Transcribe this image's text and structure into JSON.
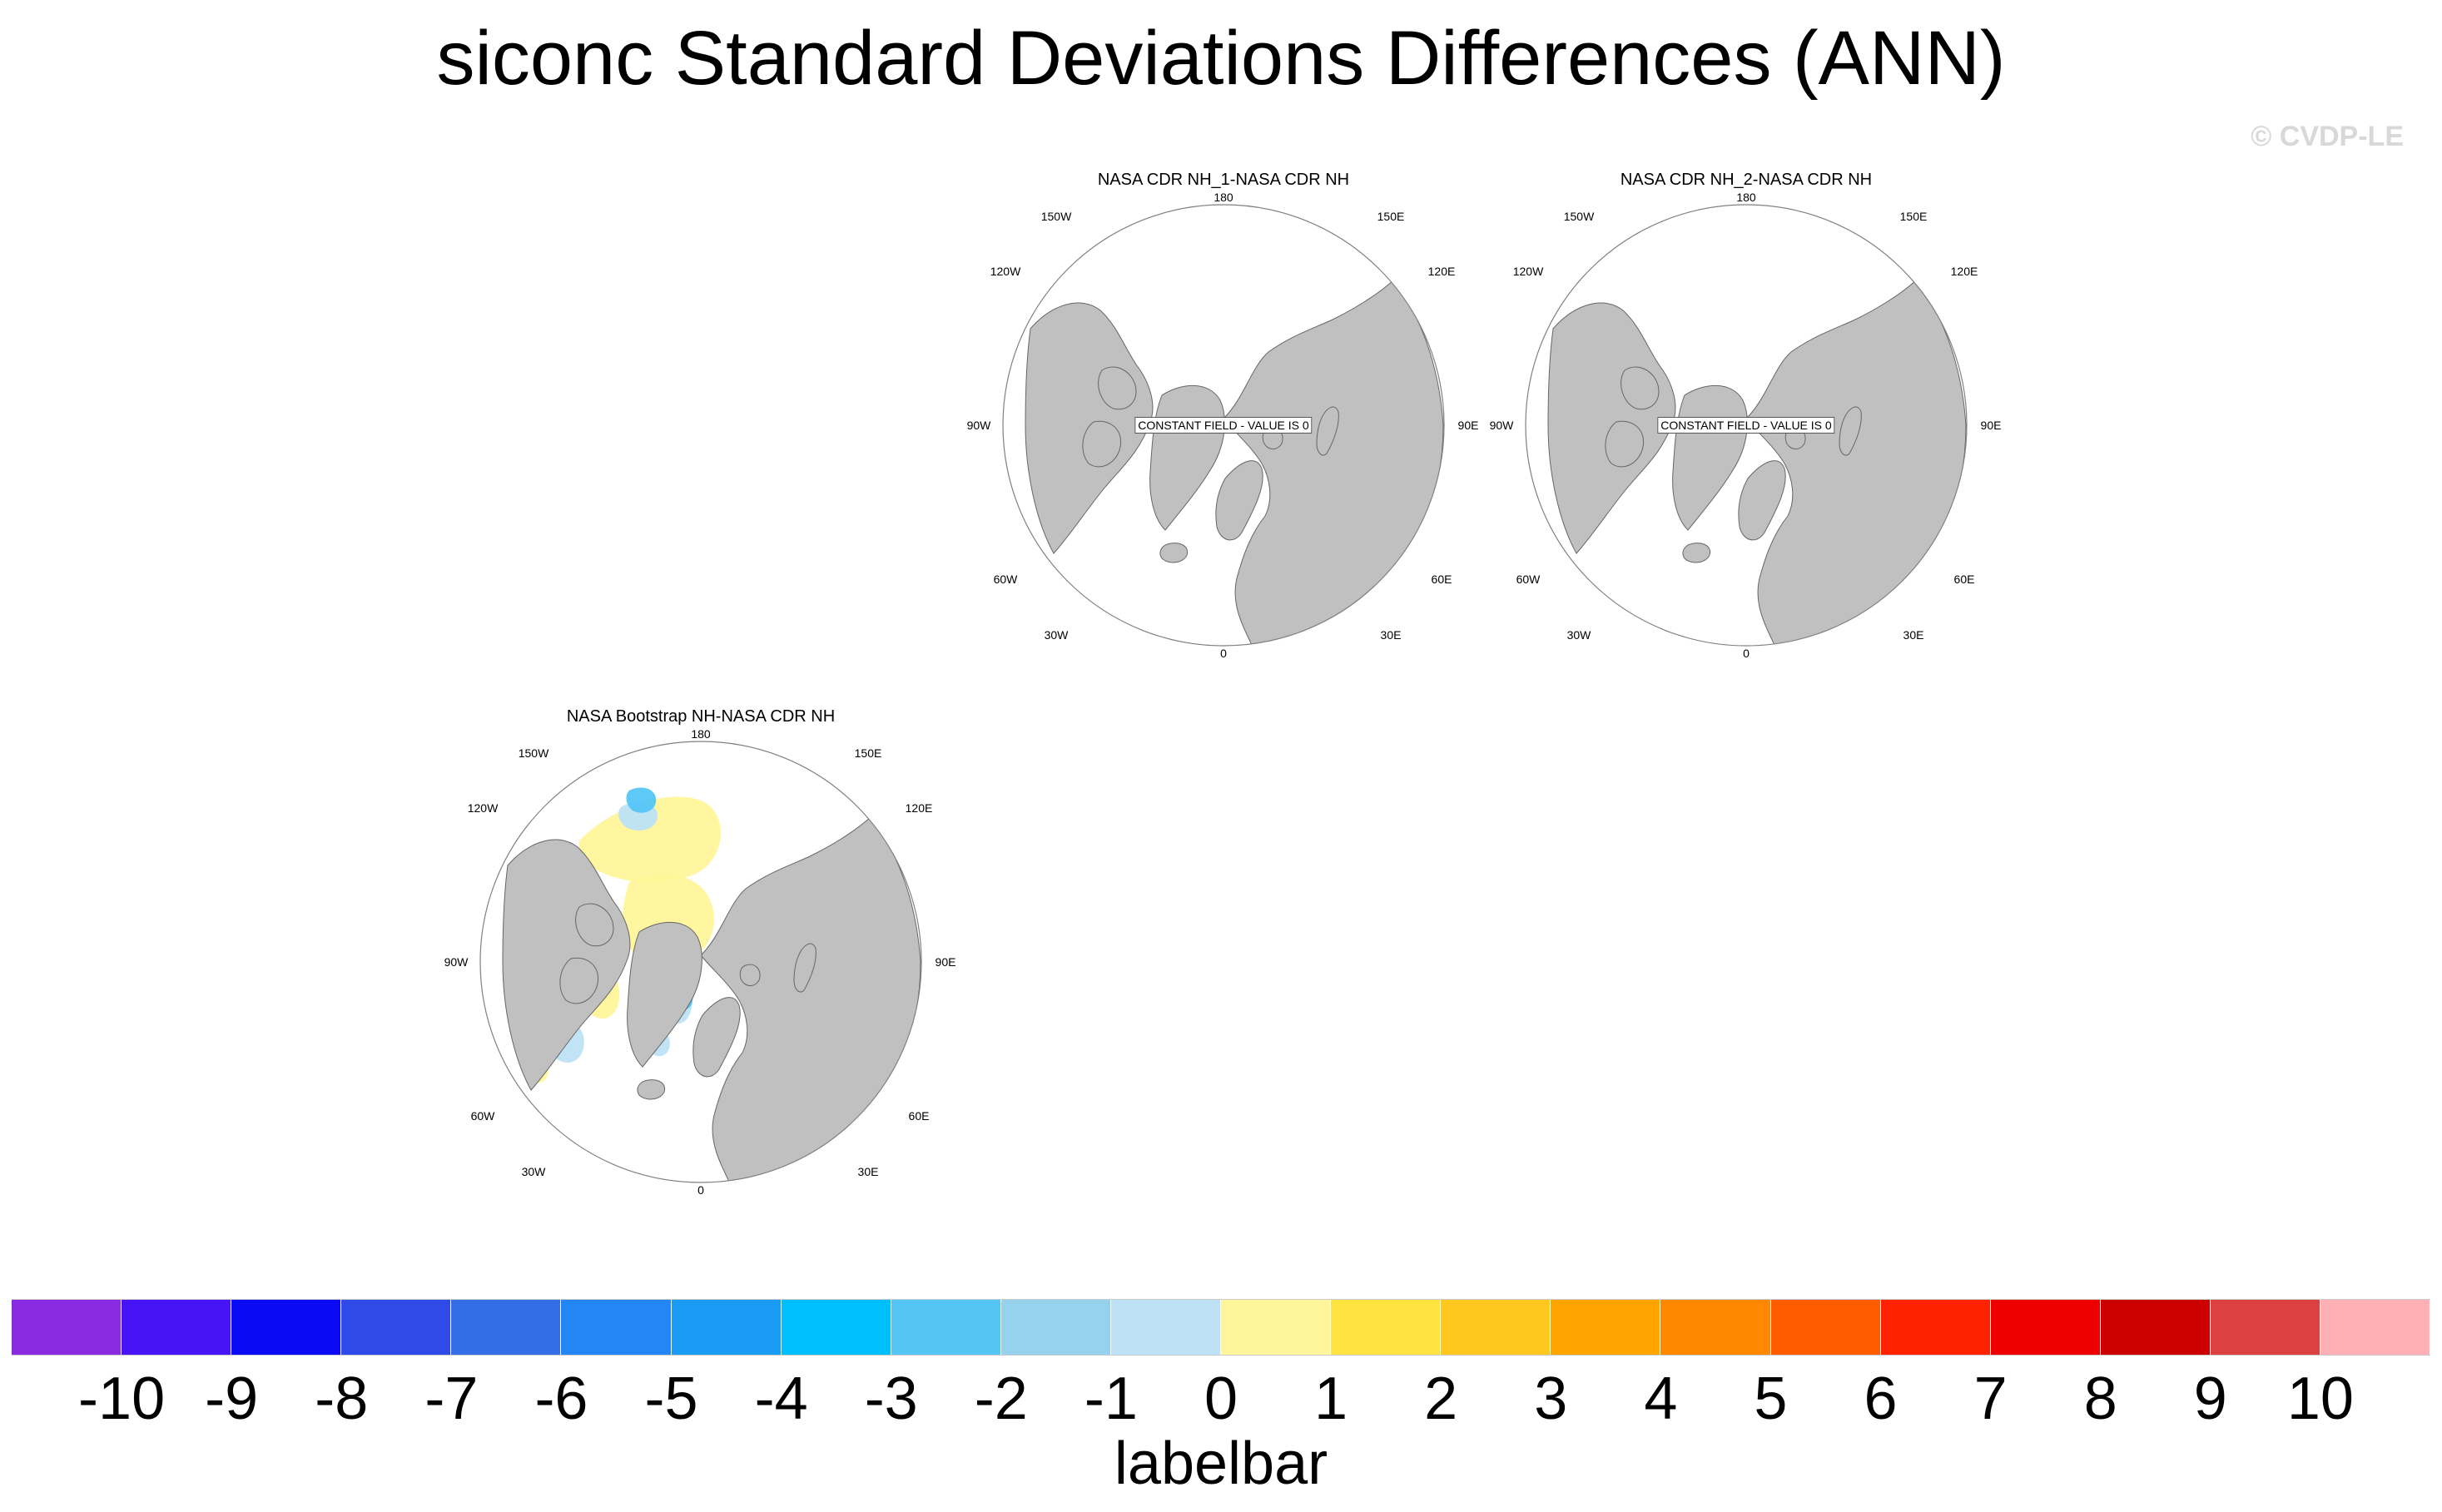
{
  "title": "siconc Standard Deviations Differences (ANN)",
  "credit": "© CVDP-LE",
  "colors": {
    "land": "#c0c0c0",
    "ocean": "#ffffff",
    "coast": "#666666",
    "grid": "#808080"
  },
  "lon_labels": [
    "180",
    "150E",
    "120E",
    "90E",
    "60E",
    "30E",
    "0",
    "30W",
    "60W",
    "90W",
    "120W",
    "150W"
  ],
  "panels": [
    {
      "title": "NASA CDR NH_1-NASA CDR NH",
      "message": "CONSTANT FIELD - VALUE IS 0"
    },
    {
      "title": "NASA CDR NH_2-NASA CDR NH",
      "message": "CONSTANT FIELD - VALUE IS 0"
    },
    {
      "title": "NASA Bootstrap NH-NASA CDR NH",
      "message": ""
    }
  ],
  "labelbar": {
    "title": "labelbar",
    "labels": [
      "-10",
      "-9",
      "-8",
      "-7",
      "-6",
      "-5",
      "-4",
      "-3",
      "-2",
      "-1",
      "0",
      "1",
      "2",
      "3",
      "4",
      "5",
      "6",
      "7",
      "8",
      "9",
      "10"
    ],
    "colors": [
      "#8a2be2",
      "#4614f5",
      "#0a0af5",
      "#2f4ae6",
      "#346ee6",
      "#2486f5",
      "#1a9cf5",
      "#00bfff",
      "#55c5f5",
      "#96d2ee",
      "#bde2f5",
      "#fff59a",
      "#ffe340",
      "#ffc81f",
      "#ffa500",
      "#ff8800",
      "#ff5c00",
      "#ff2200",
      "#ee0000",
      "#cd0000",
      "#dd4040",
      "#ffb0b4"
    ]
  }
}
